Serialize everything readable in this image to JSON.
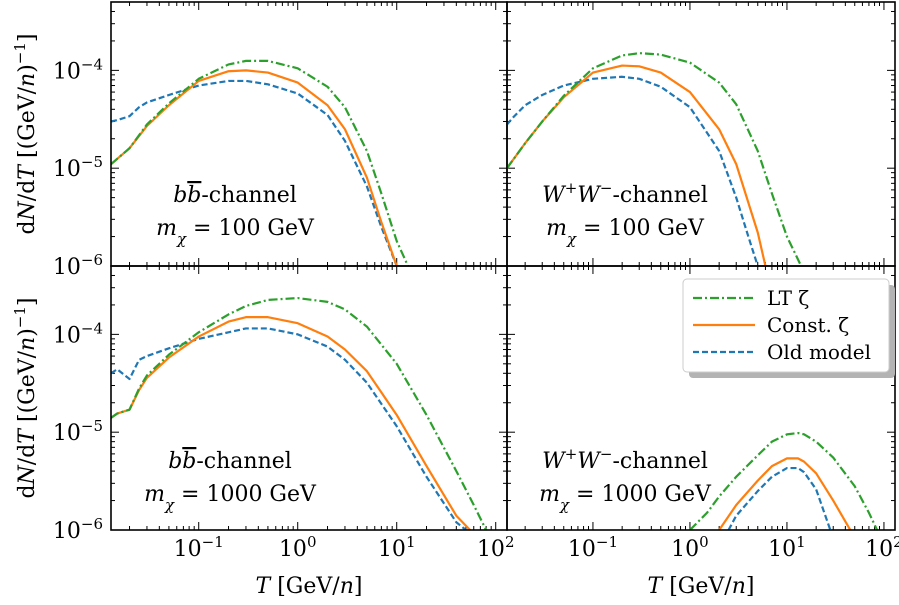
{
  "chart_data": {
    "type": "line",
    "layout": "2x2 panels, shared log axes",
    "xscale": "log",
    "yscale": "log",
    "xlim": [
      0.013,
      130
    ],
    "ylim": [
      1e-06,
      0.0005
    ],
    "xlabel": "T [GeV/n]",
    "ylabel": "dN/dT [(GeV/n)^-1]",
    "xticks": [
      {
        "value": 0.1,
        "base": "10",
        "exp": "−1"
      },
      {
        "value": 1,
        "base": "10",
        "exp": "0"
      },
      {
        "value": 10,
        "base": "10",
        "exp": "1"
      },
      {
        "value": 100,
        "base": "10",
        "exp": "2"
      }
    ],
    "yticks": [
      {
        "value": 1e-06,
        "base": "10",
        "exp": "−6"
      },
      {
        "value": 1e-05,
        "base": "10",
        "exp": "−5"
      },
      {
        "value": 0.0001,
        "base": "10",
        "exp": "−4"
      }
    ],
    "legend": {
      "placement": "bottom-right panel, upper right",
      "entries": [
        {
          "series": "lt",
          "label": "LT ζ"
        },
        {
          "series": "const",
          "label": "Const. ζ"
        },
        {
          "series": "old",
          "label": "Old model"
        }
      ]
    },
    "series_style": {
      "lt": {
        "color": "#2ca02c",
        "dash": "9 3 2 3"
      },
      "const": {
        "color": "#ff7f0e",
        "dash": ""
      },
      "old": {
        "color": "#1f77b4",
        "dash": "6 3"
      }
    },
    "panels": [
      {
        "id": "tl",
        "annotation": {
          "channel_pre": "b",
          "channel_bar": "b",
          "channel_post": "-channel",
          "mass_label": "m",
          "mass_sub": "χ",
          "mass_value": " = 100 GeV"
        },
        "series": [
          {
            "key": "lt",
            "x": [
              0.013,
              0.02,
              0.03,
              0.05,
              0.1,
              0.2,
              0.3,
              0.5,
              1,
              2,
              3,
              5,
              7,
              10,
              13
            ],
            "y": [
              1.1e-05,
              1.6e-05,
              2.8e-05,
              4.6e-05,
              8.2e-05,
              0.000115,
              0.000125,
              0.000125,
              0.000105,
              6.8e-05,
              4.2e-05,
              1.5e-05,
              5.5e-06,
              1.8e-06,
              1e-06
            ]
          },
          {
            "key": "const",
            "x": [
              0.013,
              0.02,
              0.03,
              0.05,
              0.1,
              0.2,
              0.3,
              0.5,
              1,
              2,
              3,
              5,
              7,
              10
            ],
            "y": [
              1.1e-05,
              1.6e-05,
              2.7e-05,
              4.4e-05,
              7.8e-05,
              9.8e-05,
              0.0001,
              9.5e-05,
              7.5e-05,
              4.4e-05,
              2.5e-05,
              8e-06,
              2.8e-06,
              1e-06
            ]
          },
          {
            "key": "old",
            "x": [
              0.013,
              0.015,
              0.02,
              0.025,
              0.03,
              0.05,
              0.1,
              0.2,
              0.3,
              0.5,
              1,
              2,
              3,
              5,
              7,
              10
            ],
            "y": [
              3e-05,
              3.1e-05,
              3.4e-05,
              4.2e-05,
              4.7e-05,
              5.6e-05,
              7e-05,
              7.8e-05,
              7.8e-05,
              7.2e-05,
              5.8e-05,
              3.5e-05,
              1.9e-05,
              6.5e-06,
              2.5e-06,
              1e-06
            ]
          }
        ]
      },
      {
        "id": "tr",
        "annotation": {
          "channel_pre": "W",
          "channel_sup1": "+",
          "channel_mid": "W",
          "channel_sup2": "−",
          "channel_post": "-channel",
          "mass_label": "m",
          "mass_sub": "χ",
          "mass_value": " = 100 GeV"
        },
        "series": [
          {
            "key": "lt",
            "x": [
              0.013,
              0.02,
              0.03,
              0.05,
              0.1,
              0.2,
              0.3,
              0.5,
              1,
              2,
              3,
              5,
              7,
              10,
              14
            ],
            "y": [
              1e-05,
              1.8e-05,
              3e-05,
              5.5e-05,
              0.000105,
              0.000142,
              0.00015,
              0.000145,
              0.00012,
              7.5e-05,
              4.5e-05,
              1.5e-05,
              5.5e-06,
              2e-06,
              1e-06
            ]
          },
          {
            "key": "const",
            "x": [
              0.013,
              0.02,
              0.03,
              0.05,
              0.1,
              0.2,
              0.3,
              0.5,
              1,
              2,
              3,
              5,
              6
            ],
            "y": [
              1e-05,
              1.8e-05,
              3e-05,
              5.3e-05,
              9.5e-05,
              0.000112,
              0.00011,
              9.5e-05,
              6e-05,
              2.5e-05,
              1.1e-05,
              2.2e-06,
              1e-06
            ]
          },
          {
            "key": "old",
            "x": [
              0.013,
              0.015,
              0.02,
              0.03,
              0.05,
              0.1,
              0.2,
              0.3,
              0.5,
              1,
              2,
              3,
              4,
              5
            ],
            "y": [
              2.8e-05,
              3.3e-05,
              4.4e-05,
              5.6e-05,
              7e-05,
              8.2e-05,
              8.6e-05,
              8.2e-05,
              6.8e-05,
              4.2e-05,
              1.5e-05,
              5e-06,
              2e-06,
              1e-06
            ]
          }
        ]
      },
      {
        "id": "bl",
        "annotation": {
          "channel_pre": "b",
          "channel_bar": "b",
          "channel_post": "-channel",
          "mass_label": "m",
          "mass_sub": "χ",
          "mass_value": " = 1000 GeV"
        },
        "series": [
          {
            "key": "lt",
            "x": [
              0.013,
              0.015,
              0.02,
              0.025,
              0.03,
              0.05,
              0.1,
              0.2,
              0.3,
              0.5,
              1,
              2,
              3,
              5,
              10,
              20,
              40,
              60,
              80
            ],
            "y": [
              1.4e-05,
              1.55e-05,
              1.7e-05,
              2.8e-05,
              3.8e-05,
              6.2e-05,
              0.000105,
              0.00016,
              0.000195,
              0.000225,
              0.000235,
              0.000215,
              0.00018,
              0.00012,
              5e-05,
              1.5e-05,
              4e-06,
              1.8e-06,
              1e-06
            ]
          },
          {
            "key": "const",
            "x": [
              0.013,
              0.015,
              0.02,
              0.025,
              0.03,
              0.05,
              0.1,
              0.2,
              0.3,
              0.5,
              1,
              2,
              3,
              5,
              10,
              20,
              40,
              55
            ],
            "y": [
              1.4e-05,
              1.55e-05,
              1.7e-05,
              2.7e-05,
              3.6e-05,
              5.8e-05,
              9.5e-05,
              0.000135,
              0.00015,
              0.00015,
              0.00013,
              9.5e-05,
              7e-05,
              4.2e-05,
              1.5e-05,
              4.5e-06,
              1.4e-06,
              1e-06
            ]
          },
          {
            "key": "old",
            "x": [
              0.013,
              0.015,
              0.02,
              0.025,
              0.03,
              0.05,
              0.1,
              0.2,
              0.3,
              0.5,
              1,
              2,
              3,
              5,
              10,
              20,
              40,
              50
            ],
            "y": [
              4e-05,
              4.4e-05,
              3.5e-05,
              5.5e-05,
              6e-05,
              7.2e-05,
              9e-05,
              0.000105,
              0.000115,
              0.000115,
              0.0001,
              7.5e-05,
              5.5e-05,
              3.2e-05,
              1.15e-05,
              3.5e-06,
              1.2e-06,
              1e-06
            ]
          }
        ]
      },
      {
        "id": "br",
        "annotation": {
          "channel_pre": "W",
          "channel_sup1": "+",
          "channel_mid": "W",
          "channel_sup2": "−",
          "channel_post": "-channel",
          "mass_label": "m",
          "mass_sub": "χ",
          "mass_value": " = 1000 GeV"
        },
        "series": [
          {
            "key": "lt",
            "x": [
              1.0,
              1.5,
              2,
              3,
              5,
              7,
              10,
              13,
              15,
              20,
              30,
              50,
              70,
              85
            ],
            "y": [
              1e-06,
              1.5e-06,
              2.2e-06,
              3.5e-06,
              5.8e-06,
              8e-06,
              9.5e-06,
              9.8e-06,
              9.5e-06,
              8e-06,
              5.5e-06,
              2.8e-06,
              1.5e-06,
              1e-06
            ]
          },
          {
            "key": "const",
            "x": [
              2.0,
              3,
              5,
              7,
              10,
              13,
              15,
              20,
              30,
              45
            ],
            "y": [
              1e-06,
              1.8e-06,
              3.2e-06,
              4.5e-06,
              5.4e-06,
              5.4e-06,
              5e-06,
              3.8e-06,
              2e-06,
              1e-06
            ]
          },
          {
            "key": "old",
            "x": [
              2.5,
              3,
              5,
              7,
              10,
              13,
              15,
              20,
              28
            ],
            "y": [
              1e-06,
              1.4e-06,
              2.5e-06,
              3.5e-06,
              4.3e-06,
              4.3e-06,
              3.9e-06,
              2.6e-06,
              1e-06
            ]
          }
        ]
      }
    ]
  }
}
